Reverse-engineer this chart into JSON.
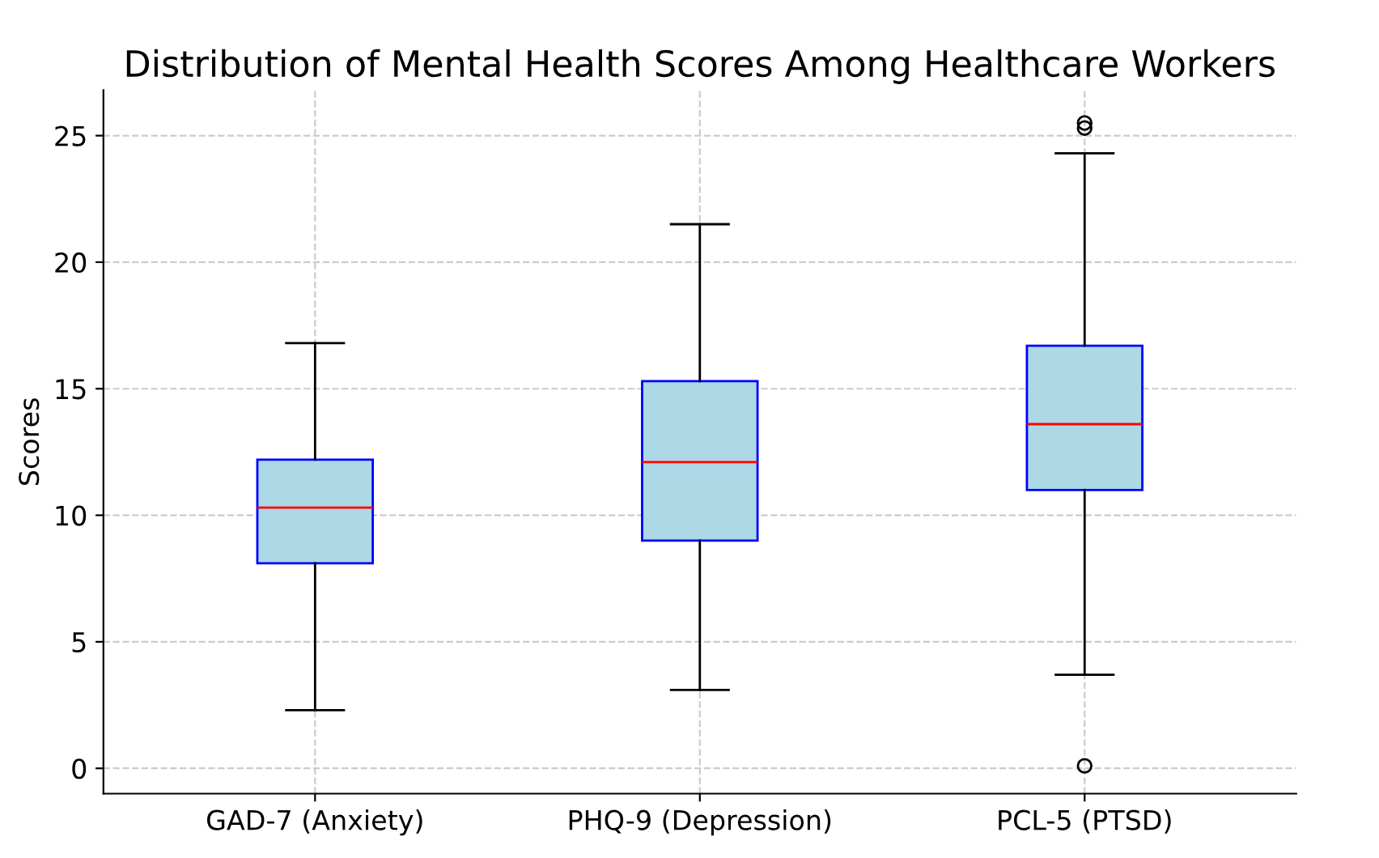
{
  "chart_data": {
    "type": "box",
    "title": "Distribution of Mental Health Scores Among Healthcare Workers",
    "ylabel": "Scores",
    "categories": [
      "GAD-7 (Anxiety)",
      "PHQ-9 (Depression)",
      "PCL-5 (PTSD)"
    ],
    "boxes": [
      {
        "low": 2.3,
        "q1": 8.1,
        "median": 10.3,
        "q3": 12.2,
        "high": 16.8
      },
      {
        "low": 3.1,
        "q1": 9.0,
        "median": 12.1,
        "q3": 15.3,
        "high": 21.5
      },
      {
        "low": 3.7,
        "q1": 11.0,
        "median": 13.6,
        "q3": 16.7,
        "high": 24.3,
        "outliers": [
          25.5,
          25.3,
          0.1
        ]
      }
    ],
    "color": "#add8e6",
    "ylim": [
      -1,
      26.8
    ],
    "yticks": [
      0,
      5,
      10,
      15,
      20,
      25
    ],
    "grid": true
  }
}
